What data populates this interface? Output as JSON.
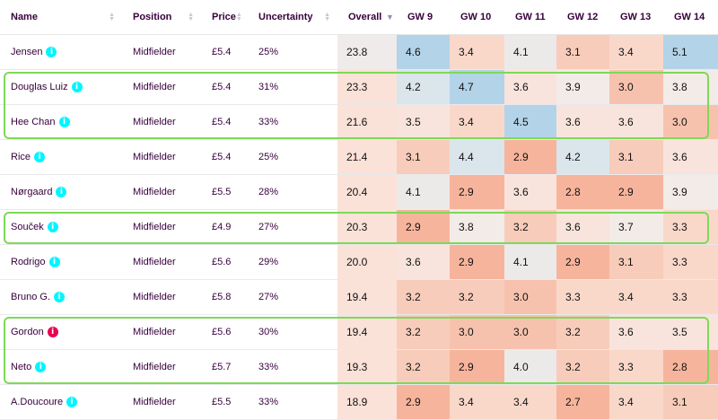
{
  "columns": {
    "name": "Name",
    "position": "Position",
    "price": "Price",
    "uncertainty": "Uncertainty",
    "overall": "Overall",
    "gw": [
      "GW 9",
      "GW 10",
      "GW 11",
      "GW 12",
      "GW 13",
      "GW 14"
    ]
  },
  "sort": {
    "column": "overall",
    "direction": "descending"
  },
  "rows": [
    {
      "name": "Jensen",
      "status": "info",
      "position": "Midfielder",
      "price": "£5.4",
      "uncertainty": "25%",
      "overall": "23.8",
      "gw": [
        "4.6",
        "3.4",
        "4.1",
        "3.1",
        "3.4",
        "5.1"
      ]
    },
    {
      "name": "Douglas Luiz",
      "status": "info",
      "position": "Midfielder",
      "price": "£5.4",
      "uncertainty": "31%",
      "overall": "23.3",
      "gw": [
        "4.2",
        "4.7",
        "3.6",
        "3.9",
        "3.0",
        "3.8"
      ]
    },
    {
      "name": "Hee Chan",
      "status": "info",
      "position": "Midfielder",
      "price": "£5.4",
      "uncertainty": "33%",
      "overall": "21.6",
      "gw": [
        "3.5",
        "3.4",
        "4.5",
        "3.6",
        "3.6",
        "3.0"
      ]
    },
    {
      "name": "Rice",
      "status": "info",
      "position": "Midfielder",
      "price": "£5.4",
      "uncertainty": "25%",
      "overall": "21.4",
      "gw": [
        "3.1",
        "4.4",
        "2.9",
        "4.2",
        "3.1",
        "3.6"
      ]
    },
    {
      "name": "Nørgaard",
      "status": "info",
      "position": "Midfielder",
      "price": "£5.5",
      "uncertainty": "28%",
      "overall": "20.4",
      "gw": [
        "4.1",
        "2.9",
        "3.6",
        "2.8",
        "2.9",
        "3.9"
      ]
    },
    {
      "name": "Souček",
      "status": "info",
      "position": "Midfielder",
      "price": "£4.9",
      "uncertainty": "27%",
      "overall": "20.3",
      "gw": [
        "2.9",
        "3.8",
        "3.2",
        "3.6",
        "3.7",
        "3.3"
      ]
    },
    {
      "name": "Rodrigo",
      "status": "info",
      "position": "Midfielder",
      "price": "£5.6",
      "uncertainty": "29%",
      "overall": "20.0",
      "gw": [
        "3.6",
        "2.9",
        "4.1",
        "2.9",
        "3.1",
        "3.3"
      ]
    },
    {
      "name": "Bruno G.",
      "status": "info",
      "position": "Midfielder",
      "price": "£5.8",
      "uncertainty": "27%",
      "overall": "19.4",
      "gw": [
        "3.2",
        "3.2",
        "3.0",
        "3.3",
        "3.4",
        "3.3"
      ]
    },
    {
      "name": "Gordon",
      "status": "alert",
      "position": "Midfielder",
      "price": "£5.6",
      "uncertainty": "30%",
      "overall": "19.4",
      "gw": [
        "3.2",
        "3.0",
        "3.0",
        "3.2",
        "3.6",
        "3.5"
      ]
    },
    {
      "name": "Neto",
      "status": "info",
      "position": "Midfielder",
      "price": "£5.7",
      "uncertainty": "33%",
      "overall": "19.3",
      "gw": [
        "3.2",
        "2.9",
        "4.0",
        "3.2",
        "3.3",
        "2.8"
      ]
    },
    {
      "name": "A.Doucoure",
      "status": "info",
      "position": "Midfielder",
      "price": "£5.5",
      "uncertainty": "33%",
      "overall": "18.9",
      "gw": [
        "2.9",
        "3.4",
        "3.4",
        "2.7",
        "3.4",
        "3.1"
      ]
    }
  ],
  "highlight_groups": [
    {
      "rows": [
        "Douglas Luiz",
        "Hee Chan"
      ],
      "color": "#7ed957"
    },
    {
      "rows": [
        "Souček"
      ],
      "color": "#7ed957"
    },
    {
      "rows": [
        "Gordon",
        "Neto"
      ],
      "color": "#7ed957"
    }
  ],
  "colors": {
    "info_icon": "#04f5ff",
    "alert_icon": "#e90052",
    "overall_cell": "#fbe2d8",
    "overall_top_cell": "#efebea",
    "heat_low": "#f7b49c",
    "heat_mid": "#f2ebe8",
    "heat_high": "#b3d3e8"
  }
}
